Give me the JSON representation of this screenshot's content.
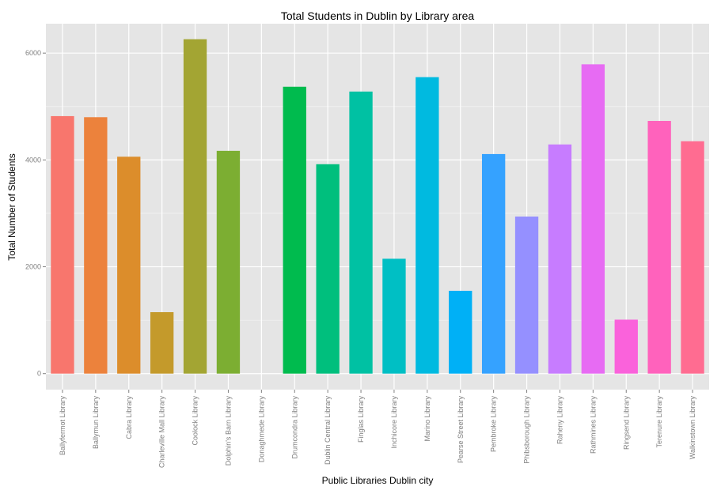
{
  "chart_data": {
    "type": "bar",
    "title": "Total Students in Dublin by Library area",
    "xlabel": "Public Libraries Dublin city",
    "ylabel": "Total Number of Students",
    "ylim": [
      -300,
      6550
    ],
    "yticks": [
      0,
      2000,
      4000,
      6000
    ],
    "grid": true,
    "legend": "none",
    "categories": [
      "Ballyfermot Library",
      "Ballymun Library",
      "Cabra Library",
      "Charleville Mall Library",
      "Coolock Library",
      "Dolphin's Barn Library",
      "Donaghmede Library",
      "Drumcondra Library",
      "Dublin Central Library",
      "Finglas Library",
      "Inchicore Library",
      "Marino Library",
      "Pearse Street Library",
      "Pembroke Library",
      "Phibsborough Library",
      "Raheny Library",
      "Rathmines Library",
      "Ringsend Library",
      "Terenure Library",
      "Walkinstown Library"
    ],
    "values": [
      4820,
      4800,
      4060,
      1150,
      6260,
      4170,
      0,
      5370,
      3920,
      5280,
      2150,
      5550,
      1550,
      4110,
      2940,
      4290,
      5790,
      1010,
      4730,
      4350
    ],
    "colors": [
      "#F8766D",
      "#EC823C",
      "#DC8D2B",
      "#C49A2B",
      "#A3A533",
      "#7CAE32",
      "#39B600",
      "#00BB4E",
      "#00BF7D",
      "#00C1A3",
      "#00BFC4",
      "#00BAE0",
      "#00B0F6",
      "#35A2FF",
      "#9590FF",
      "#C77CFF",
      "#E76BF3",
      "#FA62DB",
      "#FF62BC",
      "#FF6C91"
    ],
    "panel_background": "#E5E5E5",
    "grid_color": "#FFFFFF"
  }
}
